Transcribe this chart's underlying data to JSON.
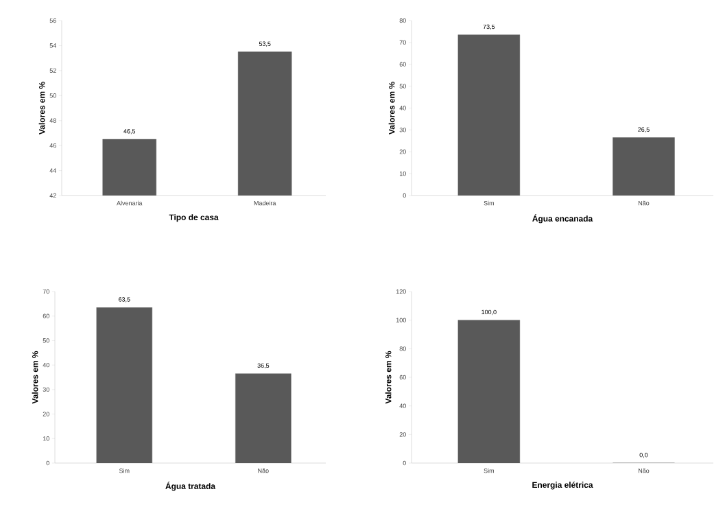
{
  "chart_data": [
    {
      "type": "bar",
      "xlabel": "Tipo de casa",
      "ylabel": "Valores em %",
      "categories": [
        "Alvenaria",
        "Madeira"
      ],
      "values": [
        46.5,
        53.5
      ],
      "value_labels": [
        "46,5",
        "53,5"
      ],
      "color": "#595959",
      "ylim": [
        42,
        56
      ],
      "yticks": [
        42,
        44,
        46,
        48,
        50,
        52,
        54,
        56
      ]
    },
    {
      "type": "bar",
      "xlabel": "Água encanada",
      "ylabel": "Valores em %",
      "categories": [
        "Sim",
        "Não"
      ],
      "values": [
        73.5,
        26.5
      ],
      "value_labels": [
        "73,5",
        "26,5"
      ],
      "color": "#595959",
      "ylim": [
        0,
        80
      ],
      "yticks": [
        0,
        10,
        20,
        30,
        40,
        50,
        60,
        70,
        80
      ]
    },
    {
      "type": "bar",
      "xlabel": "Água tratada",
      "ylabel": "Valores em %",
      "categories": [
        "Sim",
        "Não"
      ],
      "values": [
        63.5,
        36.5
      ],
      "value_labels": [
        "63,5",
        "36,5"
      ],
      "color": "#595959",
      "ylim": [
        0,
        70
      ],
      "yticks": [
        0,
        10,
        20,
        30,
        40,
        50,
        60,
        70
      ]
    },
    {
      "type": "bar",
      "xlabel": "Energia elétrica",
      "ylabel": "Valores em %",
      "categories": [
        "Sim",
        "Não"
      ],
      "values": [
        100.0,
        0.0
      ],
      "value_labels": [
        "100,0",
        "0,0"
      ],
      "color": "#595959",
      "ylim": [
        0,
        120
      ],
      "yticks": [
        0,
        20,
        40,
        60,
        80,
        100,
        120
      ]
    }
  ]
}
